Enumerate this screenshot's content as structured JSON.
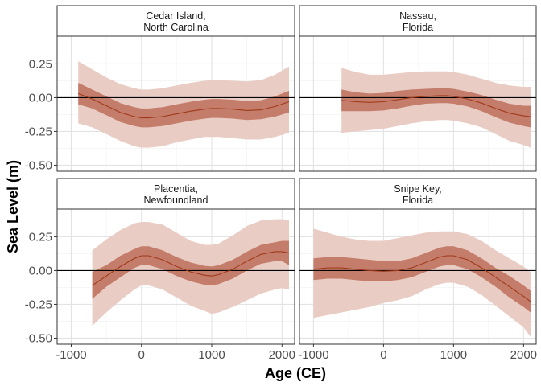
{
  "chart_data": {
    "type": "area",
    "layout": "facet-grid-2x2",
    "xlabel": "Age (CE)",
    "ylabel": "Sea Level (m)",
    "xlim": [
      -1200,
      2180
    ],
    "ylim": [
      -0.545,
      0.455
    ],
    "xticks": [
      -1000,
      0,
      1000,
      2000
    ],
    "xtick_labels": [
      "-1000",
      "0",
      "1000",
      "2000"
    ],
    "yticks": [
      -0.5,
      -0.25,
      0,
      0.25
    ],
    "ytick_labels": [
      "-0.50",
      "-0.25",
      "0.00",
      "0.25"
    ],
    "reference_line_y": 0,
    "grid": true,
    "colors": {
      "line": "#a0391b",
      "inner_band": "#c47d6a",
      "outer_band": "#e9cdc4",
      "reference": "#000000",
      "strip_fill": "#ffffff",
      "panel_border": "#333333",
      "grid_major": "#e3e3e3",
      "grid_minor": "#f2f2f2"
    },
    "panels": [
      {
        "title_lines": [
          "Cedar Island,",
          "North Carolina"
        ],
        "x": [
          -900,
          -700,
          -500,
          -300,
          -100,
          0,
          100,
          300,
          500,
          700,
          900,
          1000,
          1100,
          1300,
          1500,
          1700,
          1900,
          2100
        ],
        "mean": [
          0.03,
          -0.01,
          -0.06,
          -0.11,
          -0.14,
          -0.15,
          -0.15,
          -0.14,
          -0.12,
          -0.1,
          -0.085,
          -0.08,
          -0.08,
          -0.085,
          -0.095,
          -0.09,
          -0.065,
          -0.03
        ],
        "inner_lo": [
          -0.05,
          -0.08,
          -0.13,
          -0.18,
          -0.21,
          -0.22,
          -0.22,
          -0.21,
          -0.19,
          -0.17,
          -0.155,
          -0.15,
          -0.15,
          -0.155,
          -0.165,
          -0.16,
          -0.14,
          -0.11
        ],
        "inner_hi": [
          0.11,
          0.06,
          0.01,
          -0.04,
          -0.07,
          -0.08,
          -0.08,
          -0.07,
          -0.05,
          -0.03,
          -0.015,
          -0.01,
          -0.01,
          -0.015,
          -0.025,
          -0.02,
          0.01,
          0.05
        ],
        "outer_lo": [
          -0.19,
          -0.22,
          -0.27,
          -0.32,
          -0.36,
          -0.37,
          -0.37,
          -0.36,
          -0.33,
          -0.31,
          -0.29,
          -0.29,
          -0.29,
          -0.3,
          -0.31,
          -0.31,
          -0.29,
          -0.26
        ],
        "outer_hi": [
          0.27,
          0.21,
          0.15,
          0.1,
          0.07,
          0.06,
          0.06,
          0.07,
          0.09,
          0.11,
          0.125,
          0.13,
          0.13,
          0.125,
          0.12,
          0.13,
          0.17,
          0.23
        ]
      },
      {
        "title_lines": [
          "Nassau,",
          "Florida"
        ],
        "x": [
          -600,
          -400,
          -200,
          0,
          200,
          400,
          600,
          800,
          900,
          1000,
          1200,
          1400,
          1600,
          1800,
          2000,
          2100
        ],
        "mean": [
          -0.02,
          -0.03,
          -0.035,
          -0.03,
          -0.015,
          0.0,
          0.01,
          0.015,
          0.015,
          0.01,
          -0.01,
          -0.04,
          -0.08,
          -0.115,
          -0.135,
          -0.14
        ],
        "inner_lo": [
          -0.1,
          -0.1,
          -0.1,
          -0.095,
          -0.08,
          -0.06,
          -0.045,
          -0.04,
          -0.04,
          -0.045,
          -0.065,
          -0.1,
          -0.145,
          -0.185,
          -0.21,
          -0.22
        ],
        "inner_hi": [
          0.06,
          0.04,
          0.03,
          0.035,
          0.05,
          0.06,
          0.065,
          0.07,
          0.07,
          0.065,
          0.045,
          0.02,
          -0.015,
          -0.045,
          -0.06,
          -0.06
        ],
        "outer_lo": [
          -0.26,
          -0.25,
          -0.24,
          -0.23,
          -0.21,
          -0.19,
          -0.175,
          -0.165,
          -0.165,
          -0.17,
          -0.19,
          -0.22,
          -0.27,
          -0.32,
          -0.35,
          -0.37
        ],
        "outer_hi": [
          0.22,
          0.19,
          0.17,
          0.17,
          0.18,
          0.19,
          0.195,
          0.195,
          0.195,
          0.19,
          0.17,
          0.14,
          0.11,
          0.09,
          0.08,
          0.08
        ]
      },
      {
        "title_lines": [
          "Placentia,",
          "Newfoundland"
        ],
        "x": [
          -700,
          -500,
          -300,
          -100,
          0,
          100,
          300,
          500,
          700,
          900,
          1000,
          1100,
          1300,
          1500,
          1700,
          1900,
          2000,
          2100
        ],
        "mean": [
          -0.11,
          -0.04,
          0.03,
          0.09,
          0.11,
          0.11,
          0.08,
          0.03,
          -0.01,
          -0.035,
          -0.04,
          -0.03,
          0.01,
          0.07,
          0.12,
          0.14,
          0.14,
          0.13
        ],
        "inner_lo": [
          -0.21,
          -0.12,
          -0.05,
          0.02,
          0.04,
          0.04,
          0.01,
          -0.04,
          -0.08,
          -0.105,
          -0.11,
          -0.1,
          -0.06,
          0.0,
          0.05,
          0.07,
          0.07,
          0.04
        ],
        "inner_hi": [
          -0.01,
          0.04,
          0.11,
          0.16,
          0.18,
          0.18,
          0.15,
          0.1,
          0.06,
          0.035,
          0.03,
          0.04,
          0.08,
          0.14,
          0.19,
          0.21,
          0.22,
          0.22
        ],
        "outer_lo": [
          -0.41,
          -0.31,
          -0.22,
          -0.14,
          -0.11,
          -0.11,
          -0.14,
          -0.2,
          -0.26,
          -0.3,
          -0.32,
          -0.31,
          -0.27,
          -0.22,
          -0.17,
          -0.14,
          -0.13,
          -0.14
        ],
        "outer_hi": [
          0.15,
          0.23,
          0.3,
          0.35,
          0.36,
          0.36,
          0.34,
          0.28,
          0.22,
          0.19,
          0.19,
          0.2,
          0.26,
          0.33,
          0.37,
          0.38,
          0.38,
          0.37
        ]
      },
      {
        "title_lines": [
          "Snipe Key,",
          "Florida"
        ],
        "x": [
          -1000,
          -800,
          -600,
          -400,
          -200,
          0,
          200,
          400,
          600,
          800,
          900,
          1000,
          1200,
          1400,
          1600,
          1800,
          2000,
          2100
        ],
        "mean": [
          0.01,
          0.02,
          0.02,
          0.01,
          0.0,
          -0.005,
          0.0,
          0.02,
          0.06,
          0.1,
          0.11,
          0.11,
          0.08,
          0.02,
          -0.05,
          -0.12,
          -0.19,
          -0.23
        ],
        "inner_lo": [
          -0.07,
          -0.06,
          -0.06,
          -0.07,
          -0.08,
          -0.08,
          -0.07,
          -0.05,
          -0.01,
          0.03,
          0.04,
          0.04,
          0.01,
          -0.05,
          -0.12,
          -0.2,
          -0.27,
          -0.31
        ],
        "inner_hi": [
          0.09,
          0.1,
          0.1,
          0.09,
          0.08,
          0.07,
          0.07,
          0.09,
          0.13,
          0.17,
          0.18,
          0.18,
          0.15,
          0.09,
          0.02,
          -0.04,
          -0.11,
          -0.15
        ],
        "outer_lo": [
          -0.35,
          -0.33,
          -0.31,
          -0.29,
          -0.27,
          -0.24,
          -0.22,
          -0.19,
          -0.14,
          -0.1,
          -0.09,
          -0.09,
          -0.12,
          -0.18,
          -0.26,
          -0.34,
          -0.42,
          -0.49
        ],
        "outer_hi": [
          0.31,
          0.28,
          0.25,
          0.23,
          0.22,
          0.22,
          0.24,
          0.26,
          0.28,
          0.29,
          0.29,
          0.29,
          0.27,
          0.22,
          0.15,
          0.09,
          0.03,
          -0.01
        ]
      }
    ]
  }
}
